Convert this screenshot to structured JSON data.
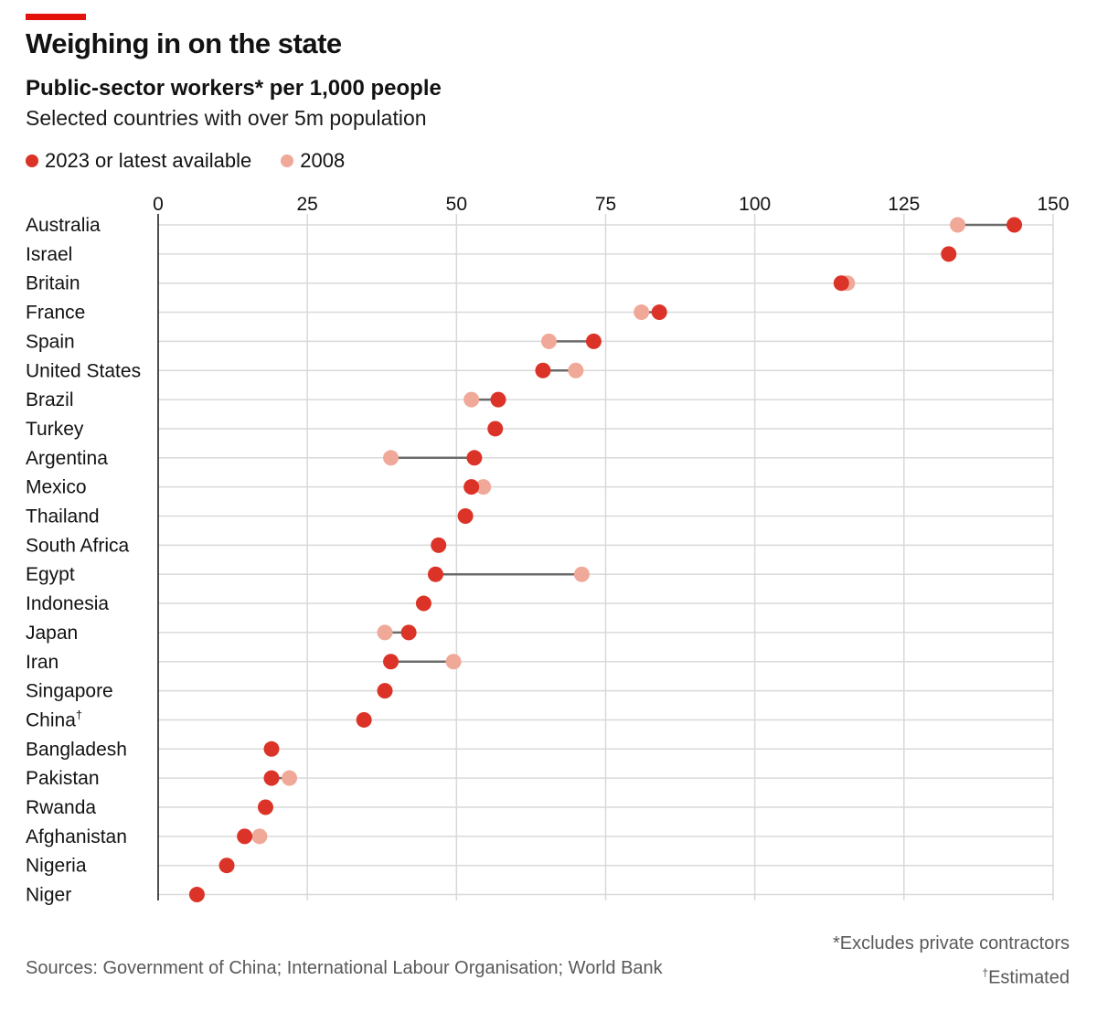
{
  "header": {
    "title": "Weighing in on the state",
    "subtitle": "Public-sector workers* per 1,000 people",
    "subtitle2": "Selected countries with over 5m population"
  },
  "legend": [
    {
      "label": "2023 or latest available",
      "color": "#db3328"
    },
    {
      "label": "2008",
      "color": "#f0a898"
    }
  ],
  "footer": {
    "note1": "*Excludes private contractors",
    "note2_mark": "†",
    "note2": "Estimated",
    "sources": "Sources: Government of China; International Labour Organisation; World Bank"
  },
  "chart_data": {
    "type": "dot-plot",
    "xlim": [
      0,
      150
    ],
    "xticks": [
      0,
      25,
      50,
      75,
      100,
      125,
      150
    ],
    "grid": true,
    "series": [
      {
        "name": "2023 or latest available",
        "color": "#db3328"
      },
      {
        "name": "2008",
        "color": "#f0a898"
      }
    ],
    "rows": [
      {
        "country": "Australia",
        "latest": 143.5,
        "y2008": 134
      },
      {
        "country": "Israel",
        "latest": 132.5,
        "y2008": null
      },
      {
        "country": "Britain",
        "latest": 114.5,
        "y2008": 115.5
      },
      {
        "country": "France",
        "latest": 84,
        "y2008": 81
      },
      {
        "country": "Spain",
        "latest": 73,
        "y2008": 65.5
      },
      {
        "country": "United States",
        "latest": 64.5,
        "y2008": 70
      },
      {
        "country": "Brazil",
        "latest": 57,
        "y2008": 52.5
      },
      {
        "country": "Turkey",
        "latest": 56.5,
        "y2008": null
      },
      {
        "country": "Argentina",
        "latest": 53,
        "y2008": 39
      },
      {
        "country": "Mexico",
        "latest": 52.5,
        "y2008": 54.5
      },
      {
        "country": "Thailand",
        "latest": 51.5,
        "y2008": null
      },
      {
        "country": "South Africa",
        "latest": 47,
        "y2008": null
      },
      {
        "country": "Egypt",
        "latest": 46.5,
        "y2008": 71
      },
      {
        "country": "Indonesia",
        "latest": 44.5,
        "y2008": null
      },
      {
        "country": "Japan",
        "latest": 42,
        "y2008": 38
      },
      {
        "country": "Iran",
        "latest": 39,
        "y2008": 49.5
      },
      {
        "country": "Singapore",
        "latest": 38,
        "y2008": null
      },
      {
        "country": "China",
        "mark": "†",
        "latest": 34.5,
        "y2008": null
      },
      {
        "country": "Bangladesh",
        "latest": 19,
        "y2008": null
      },
      {
        "country": "Pakistan",
        "latest": 19,
        "y2008": 22
      },
      {
        "country": "Rwanda",
        "latest": 18,
        "y2008": null
      },
      {
        "country": "Afghanistan",
        "latest": 14.5,
        "y2008": 17
      },
      {
        "country": "Nigeria",
        "latest": 11.5,
        "y2008": null
      },
      {
        "country": "Niger",
        "latest": 6.5,
        "y2008": null
      }
    ]
  }
}
